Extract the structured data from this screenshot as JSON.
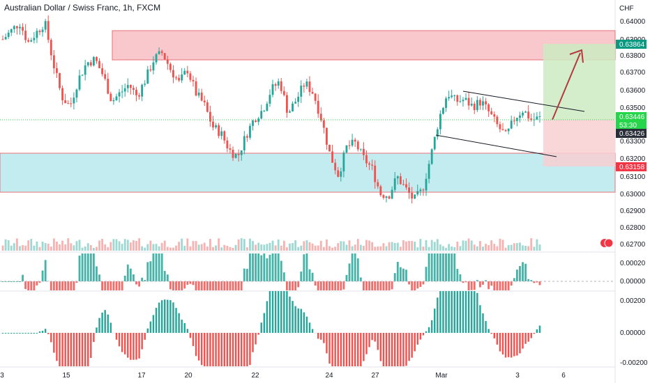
{
  "header": {
    "title": "Australian Dollar / Swiss Franc, 1h, FXCM"
  },
  "price_axis": {
    "currency": "CHF",
    "ticks": [
      "0.64000",
      "0.63900",
      "0.63800",
      "0.63700",
      "0.63600",
      "0.63500",
      "0.63300",
      "0.63200",
      "0.63100",
      "0.63000",
      "0.62900",
      "0.62800",
      "0.62700"
    ],
    "tags": [
      {
        "text": "0.63864",
        "color": "#089981"
      },
      {
        "text": "0.63446",
        "color": "#26d64a"
      },
      {
        "text": "53:30",
        "color": "#26d64a"
      },
      {
        "text": "0.63426",
        "color": "#2a2e39"
      },
      {
        "text": "0.63158",
        "color": "#f23645"
      }
    ]
  },
  "osc1_axis": {
    "ticks": [
      "0.00020",
      "0.00000"
    ]
  },
  "osc2_axis": {
    "ticks": [
      "0.00200",
      "0.00000",
      "-0.00200"
    ]
  },
  "time_axis": {
    "ticks": [
      "3",
      "15",
      "17",
      "20",
      "22",
      "24",
      "27",
      "Mar",
      "3",
      "6"
    ]
  },
  "colors": {
    "up": "#26a69a",
    "down": "#ef5350",
    "supply_zone": "#f8c8cc",
    "demand_zone": "#c3ecf1",
    "target": "#cdebc2",
    "stop": "#f8cfd1",
    "arrow": "#b2393f"
  },
  "chart_data": {
    "type": "candlestick",
    "symbol": "Australian Dollar / Swiss Franc",
    "interval": "1h",
    "source": "FXCM",
    "currency": "CHF",
    "ylim": [
      0.6266,
      0.6405
    ],
    "last_price": 0.63446,
    "countdown": "53:30",
    "zones": [
      {
        "kind": "supply",
        "from": 0.6377,
        "to": 0.6394
      },
      {
        "kind": "demand",
        "from": 0.6301,
        "to": 0.6322
      }
    ],
    "position": {
      "direction": "long",
      "target": 0.63864,
      "entry": 0.63426,
      "stop": 0.63158
    },
    "path_approx": [
      0.6392,
      0.6397,
      0.6402,
      0.639,
      0.6396,
      0.6402,
      0.6378,
      0.6358,
      0.6352,
      0.6368,
      0.6378,
      0.638,
      0.637,
      0.6355,
      0.636,
      0.6365,
      0.6358,
      0.6368,
      0.638,
      0.6384,
      0.6374,
      0.6366,
      0.6374,
      0.636,
      0.6353,
      0.634,
      0.6336,
      0.6326,
      0.6322,
      0.6335,
      0.6345,
      0.635,
      0.6362,
      0.6367,
      0.6348,
      0.6356,
      0.6366,
      0.636,
      0.6344,
      0.6323,
      0.6311,
      0.6328,
      0.633,
      0.6321,
      0.6315,
      0.63,
      0.6299,
      0.631,
      0.6303,
      0.6296,
      0.6302,
      0.6322,
      0.6345,
      0.636,
      0.6355,
      0.6356,
      0.6352,
      0.6355,
      0.6348,
      0.634,
      0.6334,
      0.6345,
      0.635,
      0.6344,
      0.6345
    ]
  }
}
